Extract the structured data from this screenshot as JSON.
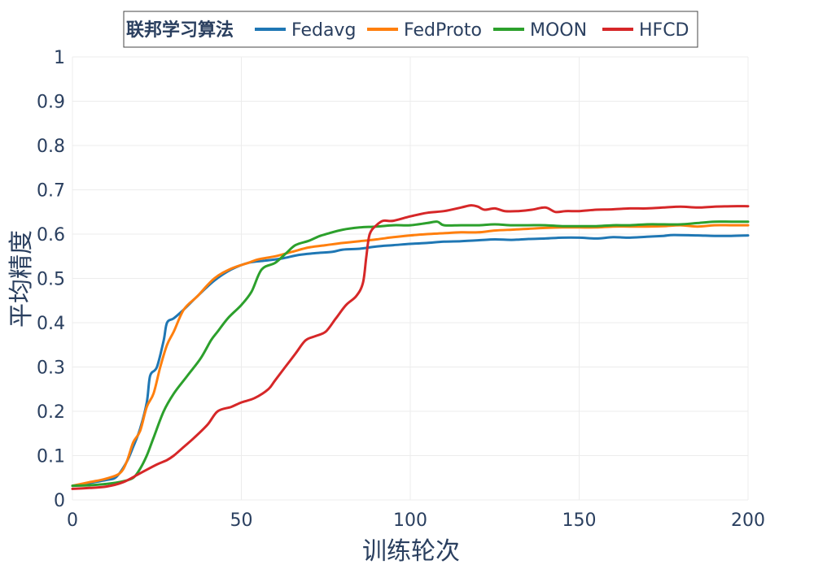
{
  "chart_data": {
    "type": "line",
    "xlabel": "训练轮次",
    "ylabel": "平均精度",
    "xlim": [
      0,
      200
    ],
    "ylim": [
      0,
      1
    ],
    "xticks": [
      0,
      50,
      100,
      150,
      200
    ],
    "yticks": [
      0,
      0.1,
      0.2,
      0.3,
      0.4,
      0.5,
      0.6,
      0.7,
      0.8,
      0.9,
      1
    ],
    "xtick_labels": [
      "0",
      "50",
      "100",
      "150",
      "200"
    ],
    "ytick_labels": [
      "0",
      "0.1",
      "0.2",
      "0.3",
      "0.4",
      "0.5",
      "0.6",
      "0.7",
      "0.8",
      "0.9",
      "1"
    ],
    "grid": true,
    "legend": {
      "title": "联邦学习算法",
      "placement": "top-center",
      "orientation": "horizontal"
    },
    "series": [
      {
        "name": "Fedavg",
        "color": "#1f77b4",
        "points": [
          [
            0,
            0.032
          ],
          [
            5,
            0.038
          ],
          [
            10,
            0.045
          ],
          [
            13,
            0.052
          ],
          [
            16,
            0.085
          ],
          [
            18,
            0.12
          ],
          [
            20,
            0.16
          ],
          [
            22,
            0.22
          ],
          [
            23,
            0.28
          ],
          [
            25,
            0.3
          ],
          [
            27,
            0.36
          ],
          [
            28,
            0.4
          ],
          [
            30,
            0.41
          ],
          [
            33,
            0.43
          ],
          [
            37,
            0.46
          ],
          [
            42,
            0.495
          ],
          [
            47,
            0.52
          ],
          [
            52,
            0.535
          ],
          [
            57,
            0.54
          ],
          [
            62,
            0.545
          ],
          [
            67,
            0.553
          ],
          [
            72,
            0.557
          ],
          [
            77,
            0.56
          ],
          [
            80,
            0.565
          ],
          [
            85,
            0.567
          ],
          [
            90,
            0.572
          ],
          [
            95,
            0.575
          ],
          [
            100,
            0.578
          ],
          [
            105,
            0.58
          ],
          [
            110,
            0.583
          ],
          [
            115,
            0.584
          ],
          [
            120,
            0.586
          ],
          [
            125,
            0.588
          ],
          [
            130,
            0.587
          ],
          [
            135,
            0.589
          ],
          [
            140,
            0.59
          ],
          [
            145,
            0.592
          ],
          [
            150,
            0.592
          ],
          [
            155,
            0.59
          ],
          [
            160,
            0.593
          ],
          [
            165,
            0.592
          ],
          [
            170,
            0.594
          ],
          [
            175,
            0.596
          ],
          [
            178,
            0.598
          ],
          [
            185,
            0.597
          ],
          [
            190,
            0.596
          ],
          [
            195,
            0.596
          ],
          [
            200,
            0.597
          ]
        ]
      },
      {
        "name": "FedProto",
        "color": "#ff7f0e",
        "points": [
          [
            0,
            0.032
          ],
          [
            5,
            0.04
          ],
          [
            10,
            0.048
          ],
          [
            14,
            0.06
          ],
          [
            16,
            0.085
          ],
          [
            18,
            0.13
          ],
          [
            20,
            0.155
          ],
          [
            22,
            0.21
          ],
          [
            24,
            0.24
          ],
          [
            26,
            0.3
          ],
          [
            28,
            0.35
          ],
          [
            30,
            0.38
          ],
          [
            33,
            0.43
          ],
          [
            37,
            0.46
          ],
          [
            42,
            0.5
          ],
          [
            47,
            0.522
          ],
          [
            52,
            0.535
          ],
          [
            55,
            0.543
          ],
          [
            60,
            0.55
          ],
          [
            65,
            0.56
          ],
          [
            70,
            0.57
          ],
          [
            75,
            0.575
          ],
          [
            80,
            0.58
          ],
          [
            85,
            0.584
          ],
          [
            90,
            0.588
          ],
          [
            95,
            0.593
          ],
          [
            100,
            0.597
          ],
          [
            105,
            0.6
          ],
          [
            110,
            0.602
          ],
          [
            115,
            0.604
          ],
          [
            120,
            0.604
          ],
          [
            125,
            0.608
          ],
          [
            130,
            0.61
          ],
          [
            135,
            0.612
          ],
          [
            140,
            0.614
          ],
          [
            145,
            0.615
          ],
          [
            150,
            0.615
          ],
          [
            155,
            0.615
          ],
          [
            160,
            0.617
          ],
          [
            165,
            0.617
          ],
          [
            170,
            0.617
          ],
          [
            175,
            0.618
          ],
          [
            180,
            0.62
          ],
          [
            185,
            0.617
          ],
          [
            190,
            0.62
          ],
          [
            195,
            0.62
          ],
          [
            200,
            0.62
          ]
        ]
      },
      {
        "name": "MOON",
        "color": "#2ca02c",
        "points": [
          [
            0,
            0.032
          ],
          [
            5,
            0.033
          ],
          [
            10,
            0.036
          ],
          [
            15,
            0.042
          ],
          [
            18,
            0.05
          ],
          [
            20,
            0.07
          ],
          [
            22,
            0.1
          ],
          [
            24,
            0.14
          ],
          [
            27,
            0.2
          ],
          [
            30,
            0.24
          ],
          [
            34,
            0.28
          ],
          [
            38,
            0.32
          ],
          [
            41,
            0.36
          ],
          [
            43,
            0.38
          ],
          [
            46,
            0.41
          ],
          [
            50,
            0.44
          ],
          [
            53,
            0.47
          ],
          [
            56,
            0.52
          ],
          [
            60,
            0.535
          ],
          [
            63,
            0.555
          ],
          [
            66,
            0.575
          ],
          [
            70,
            0.585
          ],
          [
            73,
            0.595
          ],
          [
            76,
            0.602
          ],
          [
            80,
            0.61
          ],
          [
            85,
            0.615
          ],
          [
            90,
            0.617
          ],
          [
            95,
            0.62
          ],
          [
            100,
            0.62
          ],
          [
            105,
            0.625
          ],
          [
            108,
            0.628
          ],
          [
            110,
            0.62
          ],
          [
            115,
            0.62
          ],
          [
            120,
            0.62
          ],
          [
            125,
            0.622
          ],
          [
            130,
            0.62
          ],
          [
            135,
            0.62
          ],
          [
            140,
            0.62
          ],
          [
            145,
            0.618
          ],
          [
            150,
            0.618
          ],
          [
            155,
            0.618
          ],
          [
            160,
            0.62
          ],
          [
            165,
            0.62
          ],
          [
            170,
            0.622
          ],
          [
            175,
            0.622
          ],
          [
            180,
            0.622
          ],
          [
            185,
            0.625
          ],
          [
            190,
            0.628
          ],
          [
            195,
            0.628
          ],
          [
            200,
            0.628
          ]
        ]
      },
      {
        "name": "HFCD",
        "color": "#d62728",
        "points": [
          [
            0,
            0.025
          ],
          [
            5,
            0.027
          ],
          [
            10,
            0.03
          ],
          [
            15,
            0.04
          ],
          [
            20,
            0.06
          ],
          [
            25,
            0.08
          ],
          [
            28,
            0.09
          ],
          [
            30,
            0.1
          ],
          [
            33,
            0.12
          ],
          [
            36,
            0.14
          ],
          [
            40,
            0.17
          ],
          [
            43,
            0.2
          ],
          [
            47,
            0.21
          ],
          [
            50,
            0.22
          ],
          [
            54,
            0.23
          ],
          [
            58,
            0.25
          ],
          [
            60,
            0.27
          ],
          [
            63,
            0.3
          ],
          [
            66,
            0.33
          ],
          [
            69,
            0.36
          ],
          [
            72,
            0.37
          ],
          [
            75,
            0.38
          ],
          [
            78,
            0.41
          ],
          [
            81,
            0.44
          ],
          [
            84,
            0.46
          ],
          [
            86,
            0.49
          ],
          [
            87,
            0.55
          ],
          [
            88,
            0.6
          ],
          [
            90,
            0.62
          ],
          [
            92,
            0.63
          ],
          [
            95,
            0.63
          ],
          [
            100,
            0.64
          ],
          [
            105,
            0.648
          ],
          [
            110,
            0.652
          ],
          [
            115,
            0.66
          ],
          [
            118,
            0.665
          ],
          [
            120,
            0.662
          ],
          [
            122,
            0.655
          ],
          [
            125,
            0.658
          ],
          [
            128,
            0.652
          ],
          [
            132,
            0.652
          ],
          [
            136,
            0.655
          ],
          [
            140,
            0.66
          ],
          [
            143,
            0.65
          ],
          [
            146,
            0.652
          ],
          [
            150,
            0.652
          ],
          [
            155,
            0.655
          ],
          [
            160,
            0.656
          ],
          [
            165,
            0.658
          ],
          [
            170,
            0.658
          ],
          [
            175,
            0.66
          ],
          [
            180,
            0.662
          ],
          [
            185,
            0.66
          ],
          [
            190,
            0.662
          ],
          [
            195,
            0.663
          ],
          [
            200,
            0.663
          ]
        ]
      }
    ]
  }
}
